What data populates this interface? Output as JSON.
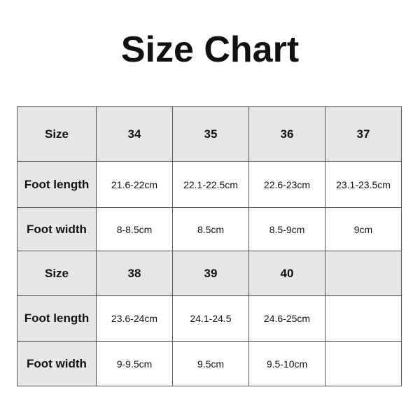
{
  "title": "Size Chart",
  "blocks": [
    {
      "size_label": "Size",
      "sizes": [
        "34",
        "35",
        "36",
        "37"
      ],
      "foot_length_label": "Foot length",
      "foot_length": [
        "21.6-22cm",
        "22.1-22.5cm",
        "22.6-23cm",
        "23.1-23.5cm"
      ],
      "foot_width_label": "Foot width",
      "foot_width": [
        "8-8.5cm",
        "8.5cm",
        "8.5-9cm",
        "9cm"
      ]
    },
    {
      "size_label": "Size",
      "sizes": [
        "38",
        "39",
        "40",
        ""
      ],
      "foot_length_label": "Foot length",
      "foot_length": [
        "23.6-24cm",
        "24.1-24.5",
        "24.6-25cm",
        ""
      ],
      "foot_width_label": "Foot width",
      "foot_width": [
        "9-9.5cm",
        "9.5cm",
        "9.5-10cm",
        ""
      ]
    }
  ],
  "colors": {
    "header_bg": "#e6e6e6",
    "border": "#555555"
  }
}
